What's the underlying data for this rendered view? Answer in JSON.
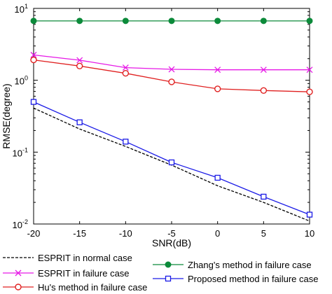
{
  "chart_data": {
    "type": "line",
    "title": "",
    "xlabel": "SNR(dB)",
    "ylabel": "RMSE(degree)",
    "xlim": [
      -20,
      10
    ],
    "ylim": [
      0.01,
      10
    ],
    "yscale": "log",
    "grid": false,
    "x": [
      -20,
      -15,
      -10,
      -5,
      0,
      5,
      10
    ],
    "xticks": [
      "-20",
      "-15",
      "-10",
      "-5",
      "0",
      "5",
      "10"
    ],
    "yticks": [
      {
        "value": 0.01,
        "base": "10",
        "exp": "-2"
      },
      {
        "value": 0.1,
        "base": "10",
        "exp": "-1"
      },
      {
        "value": 1,
        "base": "10",
        "exp": "0"
      },
      {
        "value": 10,
        "base": "10",
        "exp": "1"
      }
    ],
    "series": [
      {
        "name": "ESPRIT in normal case",
        "color": "#000000",
        "line": "dashed",
        "marker": "none",
        "values": [
          0.41,
          0.21,
          0.12,
          0.066,
          0.034,
          0.02,
          0.011
        ]
      },
      {
        "name": "ESPRIT in failure case",
        "color": "#e619e6",
        "line": "solid",
        "marker": "x",
        "values": [
          2.25,
          1.9,
          1.5,
          1.42,
          1.4,
          1.4,
          1.4
        ]
      },
      {
        "name": "Hu's method in failure case",
        "color": "#e02020",
        "line": "solid",
        "marker": "circle",
        "values": [
          1.92,
          1.58,
          1.25,
          0.95,
          0.76,
          0.72,
          0.69
        ]
      },
      {
        "name": "Zhang's method in failure case",
        "color": "#0c8a3a",
        "line": "solid",
        "marker": "filled-circle",
        "values": [
          6.7,
          6.7,
          6.7,
          6.7,
          6.7,
          6.7,
          6.7
        ]
      },
      {
        "name": "Proposed method in failure case",
        "color": "#1a1ae6",
        "line": "solid",
        "marker": "square",
        "values": [
          0.5,
          0.26,
          0.14,
          0.072,
          0.044,
          0.024,
          0.0135
        ]
      }
    ],
    "legend_placement": "bottom"
  }
}
